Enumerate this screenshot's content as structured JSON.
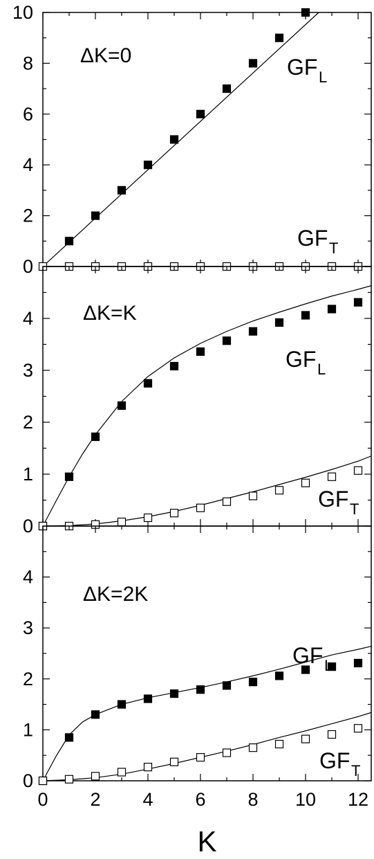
{
  "chart_data": [
    {
      "type": "scatter",
      "panel_label": "ΔK=0",
      "xlim": [
        0,
        12.5
      ],
      "ylim": [
        0,
        10
      ],
      "yticks": [
        0,
        2,
        4,
        6,
        8,
        10
      ],
      "series": [
        {
          "name": "GF",
          "name_sub": "L",
          "marker": "filled-square",
          "x": [
            1,
            2,
            3,
            4,
            5,
            6,
            7,
            8,
            9,
            10
          ],
          "y": [
            1,
            2,
            3,
            4,
            5,
            6,
            7,
            8,
            9,
            10
          ],
          "curve": {
            "x": [
              0,
              10.5
            ],
            "y": [
              0,
              10.5
            ]
          }
        },
        {
          "name": "GF",
          "name_sub": "T",
          "marker": "open-square",
          "x": [
            0,
            1,
            2,
            3,
            4,
            5,
            6,
            7,
            8,
            9,
            10,
            11,
            12
          ],
          "y": [
            0,
            0,
            0,
            0,
            0,
            0,
            0,
            0,
            0,
            0,
            0,
            0,
            0
          ],
          "curve": {
            "x": [
              0,
              12.5
            ],
            "y": [
              0,
              0
            ]
          }
        }
      ]
    },
    {
      "type": "scatter",
      "panel_label": "ΔK=K",
      "xlim": [
        0,
        12.5
      ],
      "ylim": [
        0,
        5
      ],
      "yticks": [
        0,
        1,
        2,
        3,
        4
      ],
      "series": [
        {
          "name": "GF",
          "name_sub": "L",
          "marker": "filled-square",
          "x": [
            0,
            1,
            2,
            3,
            4,
            5,
            6,
            7,
            8,
            9,
            10,
            11,
            12
          ],
          "y": [
            0,
            0.95,
            1.72,
            2.32,
            2.75,
            3.08,
            3.36,
            3.57,
            3.75,
            3.92,
            4.06,
            4.18,
            4.31
          ],
          "curve": {
            "x": [
              0,
              0.5,
              1,
              1.5,
              2,
              3,
              4,
              5,
              6,
              7,
              8,
              9,
              10,
              11,
              12,
              12.5
            ],
            "y": [
              0,
              0.48,
              0.95,
              1.38,
              1.76,
              2.4,
              2.88,
              3.24,
              3.52,
              3.75,
              3.95,
              4.12,
              4.28,
              4.43,
              4.56,
              4.63
            ]
          }
        },
        {
          "name": "GF",
          "name_sub": "T",
          "marker": "open-square",
          "x": [
            0,
            1,
            2,
            3,
            4,
            5,
            6,
            7,
            8,
            9,
            10,
            11,
            12
          ],
          "y": [
            0,
            0,
            0.03,
            0.08,
            0.16,
            0.25,
            0.35,
            0.47,
            0.58,
            0.69,
            0.83,
            0.95,
            1.07
          ],
          "curve": {
            "x": [
              0,
              1,
              2,
              3,
              4,
              5,
              6,
              7,
              8,
              9,
              10,
              11,
              12,
              12.5
            ],
            "y": [
              0,
              0.01,
              0.04,
              0.1,
              0.18,
              0.28,
              0.4,
              0.53,
              0.66,
              0.8,
              0.94,
              1.09,
              1.25,
              1.35
            ]
          }
        }
      ]
    },
    {
      "type": "scatter",
      "panel_label": "ΔK=2K",
      "xlim": [
        0,
        12.5
      ],
      "ylim": [
        0,
        5
      ],
      "yticks": [
        0,
        1,
        2,
        3,
        4
      ],
      "xticks": [
        0,
        2,
        4,
        6,
        8,
        10,
        12
      ],
      "xlabel": "K",
      "series": [
        {
          "name": "GF",
          "name_sub": "L",
          "marker": "filled-square",
          "x": [
            0,
            1,
            2,
            3,
            4,
            5,
            6,
            7,
            8,
            9,
            10,
            11,
            12
          ],
          "y": [
            0,
            0.85,
            1.3,
            1.5,
            1.61,
            1.71,
            1.79,
            1.87,
            1.94,
            2.06,
            2.18,
            2.24,
            2.31
          ],
          "curve": {
            "x": [
              0,
              0.5,
              1,
              1.5,
              2,
              3,
              4,
              5,
              6,
              7,
              8,
              9,
              10,
              11,
              12,
              12.5
            ],
            "y": [
              0,
              0.48,
              0.9,
              1.15,
              1.3,
              1.5,
              1.63,
              1.73,
              1.83,
              1.94,
              2.06,
              2.19,
              2.33,
              2.47,
              2.58,
              2.64
            ]
          }
        },
        {
          "name": "GF",
          "name_sub": "T",
          "marker": "open-square",
          "x": [
            0,
            1,
            2,
            3,
            4,
            5,
            6,
            7,
            8,
            9,
            10,
            11,
            12
          ],
          "y": [
            0,
            0.03,
            0.09,
            0.17,
            0.27,
            0.37,
            0.46,
            0.55,
            0.65,
            0.72,
            0.82,
            0.91,
            1.03
          ],
          "curve": {
            "x": [
              0,
              1,
              2,
              3,
              4,
              5,
              6,
              7,
              8,
              9,
              10,
              11,
              12,
              12.5
            ],
            "y": [
              0,
              0.02,
              0.06,
              0.13,
              0.23,
              0.34,
              0.46,
              0.58,
              0.71,
              0.85,
              0.98,
              1.12,
              1.26,
              1.34
            ]
          }
        }
      ]
    }
  ]
}
